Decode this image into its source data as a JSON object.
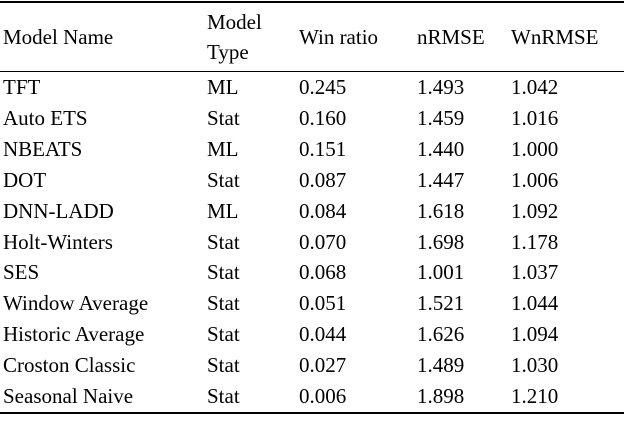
{
  "colors": {
    "text": "#000000",
    "background": "#ffffff",
    "rule": "#000000"
  },
  "table": {
    "columns": [
      "Model Name",
      "Model Type",
      "Win ratio",
      "nRMSE",
      "WnRMSE"
    ],
    "rows": [
      [
        "TFT",
        "ML",
        "0.245",
        "1.493",
        "1.042"
      ],
      [
        "Auto ETS",
        "Stat",
        "0.160",
        "1.459",
        "1.016"
      ],
      [
        "NBEATS",
        "ML",
        "0.151",
        "1.440",
        "1.000"
      ],
      [
        "DOT",
        "Stat",
        "0.087",
        "1.447",
        "1.006"
      ],
      [
        "DNN-LADD",
        "ML",
        "0.084",
        "1.618",
        "1.092"
      ],
      [
        "Holt-Winters",
        "Stat",
        "0.070",
        "1.698",
        "1.178"
      ],
      [
        "SES",
        "Stat",
        "0.068",
        "1.001",
        "1.037"
      ],
      [
        "Window Average",
        "Stat",
        "0.051",
        "1.521",
        "1.044"
      ],
      [
        "Historic Average",
        "Stat",
        "0.044",
        "1.626",
        "1.094"
      ],
      [
        "Croston Classic",
        "Stat",
        "0.027",
        "1.489",
        "1.030"
      ],
      [
        "Seasonal Naive",
        "Stat",
        "0.006",
        "1.898",
        "1.210"
      ]
    ]
  }
}
